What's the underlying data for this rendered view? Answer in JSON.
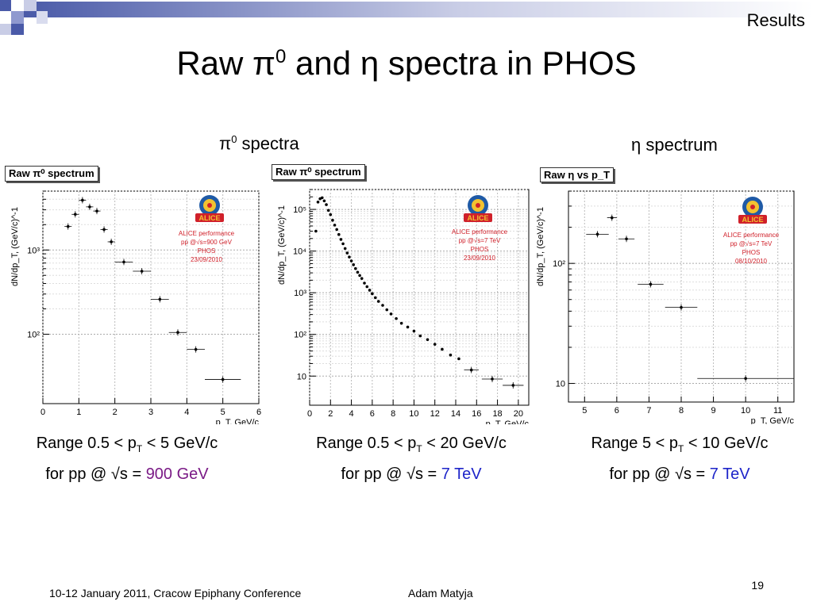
{
  "header": {
    "section": "Results",
    "title_prefix": "Raw ",
    "title_pi": "π",
    "title_sup": "0",
    "title_mid": " and ",
    "title_eta": "η",
    "title_suffix": " spectra in PHOS"
  },
  "subtitles": {
    "pi_symbol": "π",
    "pi_sup": "0",
    "pi_text": " spectra",
    "eta_symbol": "η",
    "eta_text": " spectrum"
  },
  "colors": {
    "deco_blue": "#4a5aa8",
    "highlight_purple": "#7a1a86",
    "highlight_blue": "#1d24c9",
    "alice_red": "#d0202a"
  },
  "chart_data": [
    {
      "type": "scatter",
      "legend_label": "Raw π⁰ spectrum",
      "xlabel": "p_T, GeV/c",
      "ylabel": "dN/dp_T, (GeV/c)^-1",
      "xlim": [
        0,
        6
      ],
      "ylim": [
        15,
        5000
      ],
      "yscale": "log",
      "x_ticks": [
        "0",
        "1",
        "2",
        "3",
        "4",
        "5",
        "6"
      ],
      "y_ticks": [
        {
          "label": "10³",
          "value": 1000
        },
        {
          "label": "10²",
          "value": 100
        }
      ],
      "grid": true,
      "annotation": [
        "ALICE performance",
        "pp @√s=900 GeV",
        "PHOS",
        "23/09/2010"
      ],
      "points": [
        {
          "x": 0.7,
          "y": 1900,
          "xerr": 0.1
        },
        {
          "x": 0.9,
          "y": 2650,
          "xerr": 0.1
        },
        {
          "x": 1.1,
          "y": 3900,
          "xerr": 0.1
        },
        {
          "x": 1.3,
          "y": 3250,
          "xerr": 0.1
        },
        {
          "x": 1.5,
          "y": 2900,
          "xerr": 0.1
        },
        {
          "x": 1.7,
          "y": 1750,
          "xerr": 0.1
        },
        {
          "x": 1.9,
          "y": 1250,
          "xerr": 0.1
        },
        {
          "x": 2.25,
          "y": 720,
          "xerr": 0.25
        },
        {
          "x": 2.75,
          "y": 560,
          "xerr": 0.25
        },
        {
          "x": 3.25,
          "y": 260,
          "xerr": 0.25
        },
        {
          "x": 3.75,
          "y": 105,
          "xerr": 0.25
        },
        {
          "x": 4.25,
          "y": 66,
          "xerr": 0.25
        },
        {
          "x": 5.0,
          "y": 29,
          "xerr": 0.5
        }
      ]
    },
    {
      "type": "scatter",
      "legend_label": "Raw π⁰ spectrum",
      "xlabel": "p_T, GeV/c",
      "ylabel": "dN/dp_T, (GeV/c)^-1",
      "xlim": [
        0,
        21
      ],
      "ylim": [
        2,
        300000
      ],
      "yscale": "log",
      "x_ticks": [
        "0",
        "2",
        "4",
        "6",
        "8",
        "10",
        "12",
        "14",
        "16",
        "18",
        "20"
      ],
      "y_ticks": [
        {
          "label": "10⁵",
          "value": 100000
        },
        {
          "label": "10⁴",
          "value": 10000
        },
        {
          "label": "10³",
          "value": 1000
        },
        {
          "label": "10²",
          "value": 100
        },
        {
          "label": "10",
          "value": 10
        }
      ],
      "grid": true,
      "annotation": [
        "ALICE performance",
        "pp @√s=7 TeV",
        "PHOS",
        "23/09/2010"
      ],
      "points": [
        {
          "x": 0.6,
          "y": 30000
        },
        {
          "x": 0.8,
          "y": 150000
        },
        {
          "x": 1.0,
          "y": 180000
        },
        {
          "x": 1.2,
          "y": 190000
        },
        {
          "x": 1.4,
          "y": 160000
        },
        {
          "x": 1.6,
          "y": 130000
        },
        {
          "x": 1.8,
          "y": 95000
        },
        {
          "x": 2.0,
          "y": 75000
        },
        {
          "x": 2.2,
          "y": 55000
        },
        {
          "x": 2.4,
          "y": 42000
        },
        {
          "x": 2.6,
          "y": 33000
        },
        {
          "x": 2.8,
          "y": 25000
        },
        {
          "x": 3.0,
          "y": 19000
        },
        {
          "x": 3.2,
          "y": 15000
        },
        {
          "x": 3.4,
          "y": 11500
        },
        {
          "x": 3.6,
          "y": 9000
        },
        {
          "x": 3.8,
          "y": 7200
        },
        {
          "x": 4.0,
          "y": 5800
        },
        {
          "x": 4.2,
          "y": 4700
        },
        {
          "x": 4.4,
          "y": 3800
        },
        {
          "x": 4.6,
          "y": 3100
        },
        {
          "x": 4.8,
          "y": 2600
        },
        {
          "x": 5.0,
          "y": 2200
        },
        {
          "x": 5.25,
          "y": 1700
        },
        {
          "x": 5.5,
          "y": 1400
        },
        {
          "x": 5.75,
          "y": 1150
        },
        {
          "x": 6.0,
          "y": 950
        },
        {
          "x": 6.3,
          "y": 760
        },
        {
          "x": 6.6,
          "y": 620
        },
        {
          "x": 7.0,
          "y": 500
        },
        {
          "x": 7.4,
          "y": 390
        },
        {
          "x": 7.8,
          "y": 310
        },
        {
          "x": 8.3,
          "y": 240
        },
        {
          "x": 8.8,
          "y": 185
        },
        {
          "x": 9.4,
          "y": 150
        },
        {
          "x": 10.0,
          "y": 120
        },
        {
          "x": 10.6,
          "y": 92
        },
        {
          "x": 11.3,
          "y": 75
        },
        {
          "x": 12.0,
          "y": 58
        },
        {
          "x": 12.7,
          "y": 44
        },
        {
          "x": 13.5,
          "y": 32
        },
        {
          "x": 14.3,
          "y": 26
        },
        {
          "x": 15.5,
          "y": 14,
          "xerr": 0.7
        },
        {
          "x": 17.5,
          "y": 8.5,
          "xerr": 1.0
        },
        {
          "x": 19.5,
          "y": 6,
          "xerr": 1.0
        }
      ]
    },
    {
      "type": "scatter",
      "legend_label": "Raw η vs p_T",
      "xlabel": "p_T, GeV/c",
      "ylabel": "dN/dp_T, (GeV/c)^-1",
      "xlim": [
        4.5,
        11.5
      ],
      "ylim": [
        7,
        400
      ],
      "yscale": "log",
      "x_ticks": [
        "5",
        "6",
        "7",
        "8",
        "9",
        "10",
        "11"
      ],
      "y_ticks": [
        {
          "label": "10²",
          "value": 100
        },
        {
          "label": "10",
          "value": 10
        }
      ],
      "grid": true,
      "annotation": [
        "ALICE performance",
        "pp @√s=7 TeV",
        "PHOS",
        "08/10/2010"
      ],
      "points": [
        {
          "x": 5.4,
          "y": 175,
          "xerr": 0.35
        },
        {
          "x": 5.85,
          "y": 240,
          "xerr": 0.15
        },
        {
          "x": 6.3,
          "y": 160,
          "xerr": 0.25
        },
        {
          "x": 7.05,
          "y": 67,
          "xerr": 0.4
        },
        {
          "x": 8.0,
          "y": 43,
          "xerr": 0.5
        },
        {
          "x": 10.0,
          "y": 11,
          "xerr": 1.5
        }
      ]
    }
  ],
  "captions": [
    {
      "line1_pre": "Range 0.5 < p",
      "line1_sub": "T",
      "line1_post": " < 5 GeV/c",
      "line2_pre": "for pp @ √s = ",
      "line2_value": "900 GeV"
    },
    {
      "line1_pre": "Range 0.5 < p",
      "line1_sub": "T",
      "line1_post": " < 20 GeV/c",
      "line2_pre": "for pp @ √s = ",
      "line2_value": "7 TeV"
    },
    {
      "line1_pre": "Range 5 < p",
      "line1_sub": "T",
      "line1_post": " < 10 GeV/c",
      "line2_pre": "for pp @ √s = ",
      "line2_value": "7 TeV"
    }
  ],
  "footer": {
    "conference": "10-12 January 2011, Cracow Epiphany Conference",
    "author": "Adam Matyja",
    "page": "19"
  }
}
